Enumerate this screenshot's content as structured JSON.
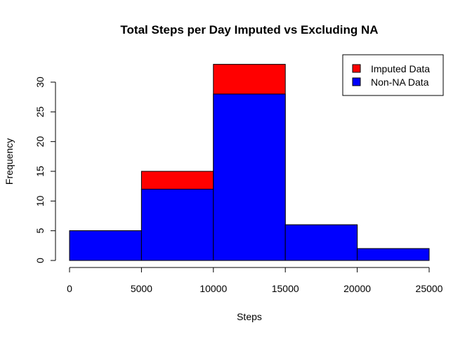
{
  "chart_data": {
    "type": "bar",
    "title": "Total Steps per Day Imputed vs Excluding NA",
    "xlabel": "Steps",
    "ylabel": "Frequency",
    "bins": [
      [
        0,
        5000
      ],
      [
        5000,
        10000
      ],
      [
        10000,
        15000
      ],
      [
        15000,
        20000
      ],
      [
        20000,
        25000
      ]
    ],
    "xlim": [
      0,
      25000
    ],
    "xticks": [
      0,
      5000,
      10000,
      15000,
      20000,
      25000
    ],
    "xtick_labels": [
      "0",
      "5000",
      "10000",
      "15000",
      "20000",
      "25000"
    ],
    "ylim": [
      0,
      33
    ],
    "yticks": [
      0,
      5,
      10,
      15,
      20,
      25,
      30
    ],
    "ytick_labels": [
      "0",
      "5",
      "10",
      "15",
      "20",
      "25",
      "30"
    ],
    "series": [
      {
        "name": "Imputed Data",
        "color": "#ff0000",
        "values": [
          5,
          15,
          33,
          6,
          2
        ]
      },
      {
        "name": "Non-NA Data",
        "color": "#0000ff",
        "values": [
          5,
          12,
          28,
          6,
          2
        ]
      }
    ],
    "legend": {
      "position": "top-right",
      "entries": [
        "Imputed Data",
        "Non-NA Data"
      ]
    },
    "grid": false
  }
}
